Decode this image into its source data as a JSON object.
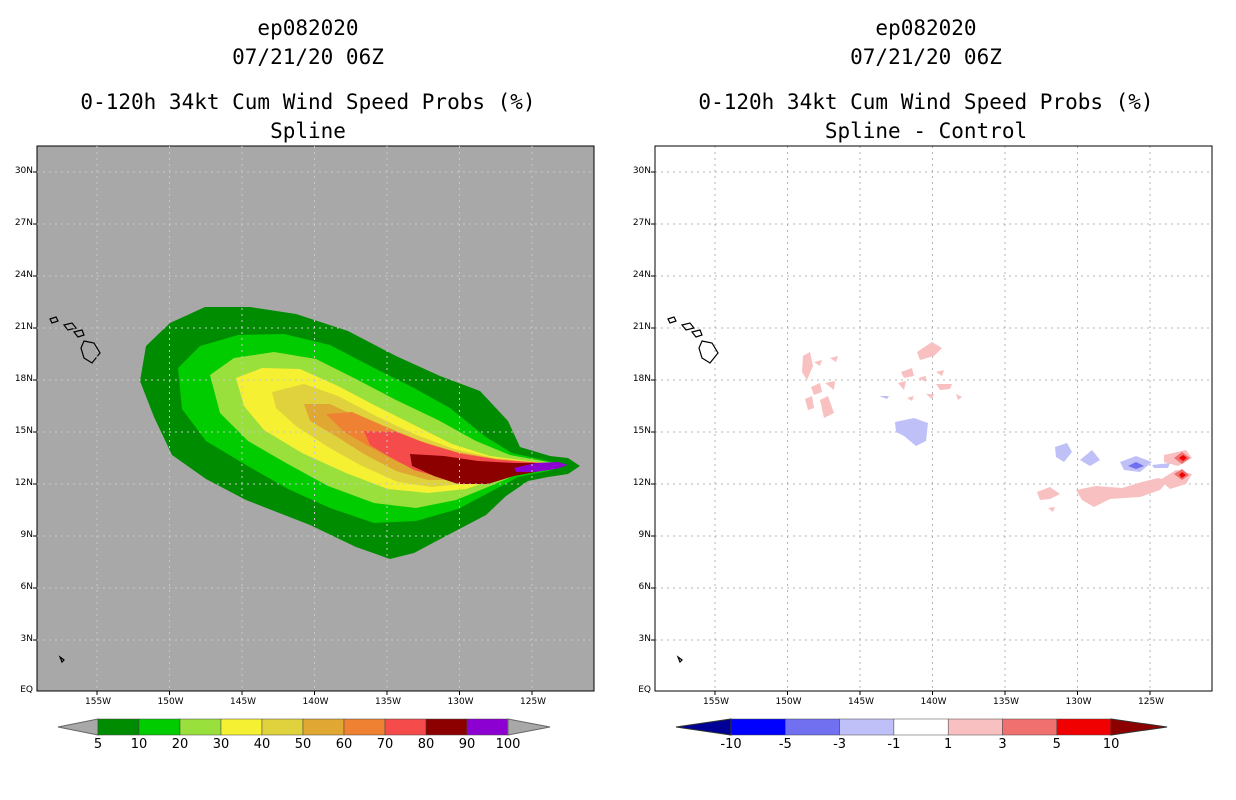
{
  "left_panel": {
    "storm_id": "ep082020",
    "datetime": "07/21/20 06Z",
    "product": "0-120h 34kt Cum Wind Speed Probs (%)",
    "subtitle": "Spline",
    "lat_labels": [
      "30N",
      "27N",
      "24N",
      "21N",
      "18N",
      "15N",
      "12N",
      "9N",
      "6N",
      "3N",
      "EQ"
    ],
    "lon_labels": [
      "155W",
      "150W",
      "145W",
      "140W",
      "135W",
      "130W",
      "125W"
    ],
    "colorbar": {
      "labels": [
        "5",
        "10",
        "20",
        "30",
        "40",
        "50",
        "60",
        "70",
        "80",
        "90",
        "100"
      ],
      "colors": [
        "#008c00",
        "#00cc00",
        "#99e03c",
        "#f5f032",
        "#e0d23c",
        "#e0a832",
        "#ee8232",
        "#f54b4b",
        "#8c0000",
        "#8c00d2"
      ]
    }
  },
  "right_panel": {
    "storm_id": "ep082020",
    "datetime": "07/21/20 06Z",
    "product": "0-120h 34kt Cum Wind Speed Probs (%)",
    "subtitle": "Spline - Control",
    "lat_labels": [
      "30N",
      "27N",
      "24N",
      "21N",
      "18N",
      "15N",
      "12N",
      "9N",
      "6N",
      "3N",
      "EQ"
    ],
    "lon_labels": [
      "155W",
      "150W",
      "145W",
      "140W",
      "135W",
      "130W",
      "125W"
    ],
    "colorbar": {
      "labels": [
        "-10",
        "-5",
        "-3",
        "-1",
        "1",
        "3",
        "5",
        "10"
      ],
      "colors": [
        "#0000ff",
        "#7070f0",
        "#c0c0f8",
        "#ffffff",
        "#f8c0c0",
        "#f07070",
        "#f00000"
      ],
      "end_colors": [
        "#000096",
        "#8c0000"
      ]
    }
  }
}
